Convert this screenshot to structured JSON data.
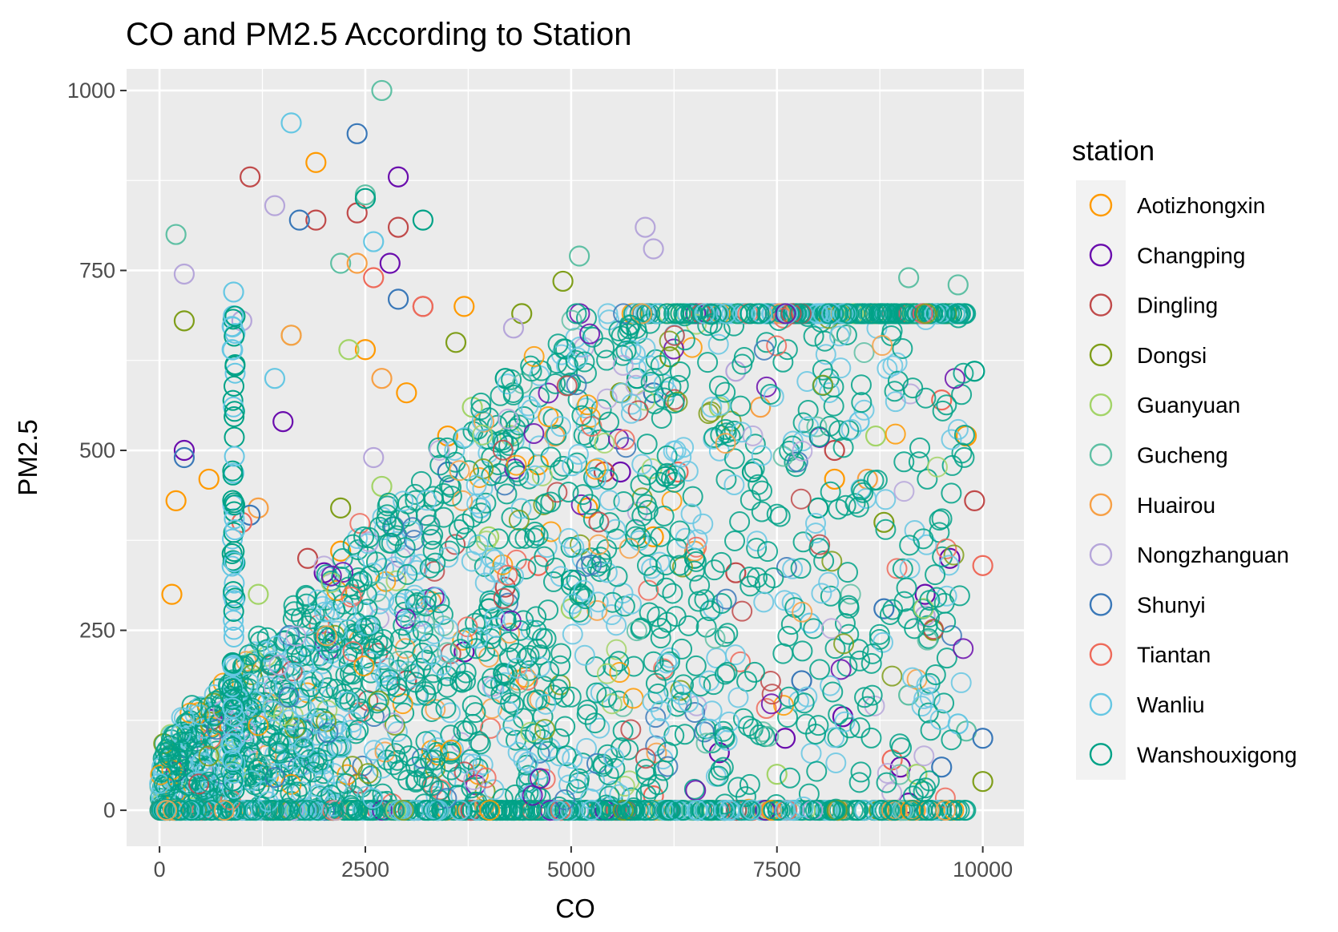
{
  "chart_data": {
    "type": "scatter",
    "title": "CO and PM2.5 According to Station",
    "xlabel": "CO",
    "ylabel": "PM2.5",
    "xlim": [
      -400,
      10500
    ],
    "ylim": [
      -50,
      1030
    ],
    "x_ticks": [
      0,
      2500,
      5000,
      7500,
      10000
    ],
    "y_ticks": [
      0,
      250,
      500,
      750,
      1000
    ],
    "grid": true,
    "marker": "hollow-circle",
    "legend": {
      "title": "station",
      "placement": "right"
    },
    "series": [
      {
        "name": "Aotizhongxin",
        "color": "#FF9A00",
        "points": [
          [
            200,
            430
          ],
          [
            1900,
            900
          ],
          [
            600,
            460
          ],
          [
            3000,
            580
          ],
          [
            3700,
            700
          ],
          [
            4600,
            480
          ],
          [
            9800,
            520
          ],
          [
            150,
            300
          ],
          [
            2200,
            360
          ],
          [
            5200,
            420
          ],
          [
            8200,
            460
          ],
          [
            2500,
            640
          ],
          [
            3500,
            520
          ],
          [
            6000,
            380
          ]
        ]
      },
      {
        "name": "Changping",
        "color": "#6A0DAD",
        "points": [
          [
            2900,
            880
          ],
          [
            300,
            500
          ],
          [
            1500,
            540
          ],
          [
            2800,
            760
          ],
          [
            5600,
            470
          ],
          [
            6800,
            80
          ],
          [
            7600,
            100
          ],
          [
            9100,
            10
          ],
          [
            9300,
            300
          ],
          [
            9000,
            60
          ],
          [
            2000,
            330
          ],
          [
            8300,
            130
          ],
          [
            3700,
            220
          ],
          [
            9600,
            350
          ]
        ]
      },
      {
        "name": "Dingling",
        "color": "#C04A4A",
        "points": [
          [
            1100,
            880
          ],
          [
            1900,
            820
          ],
          [
            2900,
            810
          ],
          [
            2400,
            830
          ],
          [
            3200,
            700
          ],
          [
            5400,
            470
          ],
          [
            7000,
            330
          ],
          [
            8200,
            500
          ],
          [
            1800,
            350
          ],
          [
            4200,
            310
          ],
          [
            9900,
            430
          ],
          [
            3000,
            180
          ]
        ]
      },
      {
        "name": "Dongsi",
        "color": "#7F9E1A",
        "points": [
          [
            300,
            680
          ],
          [
            4900,
            735
          ],
          [
            3600,
            650
          ],
          [
            4400,
            690
          ],
          [
            6200,
            630
          ],
          [
            6700,
            0
          ],
          [
            9400,
            250
          ],
          [
            9000,
            0
          ],
          [
            2200,
            420
          ],
          [
            8800,
            400
          ],
          [
            10000,
            40
          ],
          [
            5600,
            580
          ]
        ]
      },
      {
        "name": "Guanyuan",
        "color": "#A3D468",
        "points": [
          [
            1600,
            660
          ],
          [
            2300,
            640
          ],
          [
            3800,
            560
          ],
          [
            6800,
            560
          ],
          [
            7500,
            50
          ],
          [
            9200,
            50
          ],
          [
            2700,
            450
          ],
          [
            5000,
            280
          ],
          [
            8700,
            520
          ],
          [
            1200,
            300
          ],
          [
            4000,
            380
          ]
        ]
      },
      {
        "name": "Gucheng",
        "color": "#5FC0A4",
        "points": [
          [
            2700,
            1000
          ],
          [
            200,
            800
          ],
          [
            2500,
            855
          ],
          [
            5100,
            770
          ],
          [
            9100,
            740
          ],
          [
            9700,
            730
          ],
          [
            9800,
            110
          ],
          [
            9100,
            160
          ],
          [
            8900,
            0
          ],
          [
            2200,
            760
          ],
          [
            6000,
            600
          ],
          [
            4300,
            520
          ]
        ]
      },
      {
        "name": "Huairou",
        "color": "#F7A045",
        "points": [
          [
            2400,
            760
          ],
          [
            1600,
            660
          ],
          [
            2700,
            600
          ],
          [
            4800,
            520
          ],
          [
            7300,
            560
          ],
          [
            1200,
            420
          ],
          [
            3300,
            290
          ],
          [
            8600,
            460
          ],
          [
            6500,
            360
          ]
        ]
      },
      {
        "name": "Nongzhanguan",
        "color": "#B6A6DA",
        "points": [
          [
            5900,
            810
          ],
          [
            6000,
            780
          ],
          [
            1400,
            840
          ],
          [
            300,
            745
          ],
          [
            4300,
            670
          ],
          [
            9300,
            270
          ],
          [
            4800,
            0
          ],
          [
            1000,
            680
          ],
          [
            2600,
            490
          ],
          [
            7000,
            610
          ]
        ]
      },
      {
        "name": "Shunyi",
        "color": "#3A78B8",
        "points": [
          [
            2400,
            940
          ],
          [
            1700,
            820
          ],
          [
            2900,
            710
          ],
          [
            1100,
            410
          ],
          [
            300,
            490
          ],
          [
            6000,
            580
          ],
          [
            9700,
            690
          ],
          [
            10000,
            100
          ],
          [
            9500,
            60
          ],
          [
            7800,
            180
          ],
          [
            8800,
            280
          ],
          [
            3500,
            470
          ]
        ]
      },
      {
        "name": "Tiantan",
        "color": "#EE6A5A",
        "points": [
          [
            2600,
            740
          ],
          [
            3200,
            700
          ],
          [
            6000,
            20
          ],
          [
            7200,
            0
          ],
          [
            8900,
            70
          ],
          [
            10000,
            340
          ],
          [
            8300,
            0
          ],
          [
            6300,
            470
          ],
          [
            1000,
            400
          ],
          [
            4600,
            340
          ],
          [
            9500,
            570
          ]
        ]
      },
      {
        "name": "Wanliu",
        "color": "#66C7E3",
        "points": [
          [
            1600,
            955
          ],
          [
            900,
            720
          ],
          [
            2600,
            790
          ],
          [
            5300,
            460
          ],
          [
            9700,
            120
          ],
          [
            7900,
            260
          ],
          [
            5900,
            0
          ],
          [
            1400,
            600
          ],
          [
            3900,
            420
          ],
          [
            8500,
            540
          ]
        ]
      },
      {
        "name": "Wanshouxigong",
        "color": "#00A287",
        "points": [
          [
            3200,
            820
          ],
          [
            2500,
            850
          ],
          [
            4200,
            600
          ],
          [
            5800,
            600
          ],
          [
            7200,
            470
          ],
          [
            9900,
            610
          ],
          [
            2000,
            250
          ],
          [
            5000,
            320
          ],
          [
            8000,
            420
          ],
          [
            4000,
            280
          ],
          [
            6500,
            350
          ]
        ]
      }
    ]
  }
}
